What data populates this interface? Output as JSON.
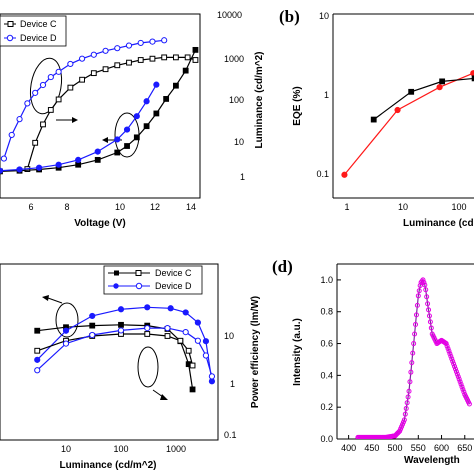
{
  "colors": {
    "black": "#000000",
    "blue": "#1a1aff",
    "red": "#ff1a1a",
    "magenta": "#e600e6",
    "purple": "#7a2a9c"
  },
  "chart_data": [
    {
      "id": "a",
      "type": "line",
      "xlabel": "Voltage (V)",
      "ylabel_right": "Luminance (cd/m^2)",
      "xlim": [
        4,
        15
      ],
      "xticks": [
        "6",
        "8",
        "10",
        "12",
        "14"
      ],
      "yticks_right": [
        "1",
        "10",
        "100",
        "1000",
        "10000"
      ],
      "legend": [
        "Device C",
        "Device D"
      ],
      "series": [
        {
          "name": "Device C",
          "axis": "left",
          "marker": "open-square",
          "x": [
            5.4,
            5.8,
            6.2,
            6.6,
            7.0,
            7.6,
            8.2,
            8.8,
            9.4,
            10.0,
            10.6,
            11.2,
            11.8,
            12.4,
            13.0,
            13.6,
            14.0
          ],
          "y": [
            2.2,
            4.2,
            5.6,
            6.7,
            7.5,
            8.4,
            9.0,
            9.5,
            9.8,
            10.1,
            10.3,
            10.5,
            10.6,
            10.7,
            10.7,
            10.7,
            10.5
          ]
        },
        {
          "name": "Device D",
          "axis": "left",
          "marker": "open-circle",
          "x": [
            4.2,
            4.6,
            5.0,
            5.4,
            5.8,
            6.2,
            6.6,
            7.0,
            7.6,
            8.2,
            8.8,
            9.4,
            10.0,
            10.6,
            11.2,
            11.8,
            12.4
          ],
          "y": [
            3.0,
            4.8,
            6.0,
            7.2,
            8.0,
            8.6,
            9.2,
            9.6,
            10.2,
            10.6,
            10.9,
            11.2,
            11.4,
            11.6,
            11.8,
            11.9,
            12.0
          ]
        },
        {
          "name": "Device C",
          "axis": "right",
          "marker": "filled-square",
          "x": [
            4.0,
            5.0,
            6.0,
            7.0,
            8.0,
            9.0,
            10.0,
            10.5,
            11.0,
            11.5,
            12.0,
            12.5,
            13.0,
            13.5,
            14.0
          ],
          "y": [
            1.3,
            1.35,
            1.45,
            1.6,
            1.9,
            2.5,
            3.8,
            5.5,
            9,
            17,
            35,
            80,
            170,
            400,
            1300
          ]
        },
        {
          "name": "Device D",
          "axis": "right",
          "marker": "filled-circle",
          "x": [
            4.0,
            5.0,
            6.0,
            7.0,
            8.0,
            9.0,
            10.0,
            10.5,
            11.0,
            11.5,
            12.0
          ],
          "y": [
            1.35,
            1.45,
            1.6,
            1.9,
            2.5,
            4,
            8,
            14,
            30,
            70,
            180
          ]
        }
      ]
    },
    {
      "id": "b",
      "type": "line",
      "xlabel": "Luminance (cd",
      "ylabel": "EQE (%)",
      "log_x": true,
      "log_y": true,
      "xticks": [
        "1",
        "10",
        "100"
      ],
      "yticks": [
        "0.1",
        "1",
        "10"
      ],
      "series": [
        {
          "color": "red",
          "marker": "filled-circle",
          "x": [
            0.9,
            8,
            45,
            180
          ],
          "y": [
            0.095,
            0.62,
            1.2,
            1.8
          ]
        },
        {
          "color": "black",
          "marker": "filled-square",
          "x": [
            3,
            14,
            50,
            190
          ],
          "y": [
            0.47,
            1.05,
            1.42,
            1.55
          ]
        }
      ]
    },
    {
      "id": "c",
      "type": "line",
      "xlabel": "Luminance (cd/m^2)",
      "ylabel_right": "Power efficiency (lm/W)",
      "log_x": true,
      "log_y": true,
      "xticks": [
        "10",
        "100",
        "1000"
      ],
      "yticks_right": [
        "0.1",
        "1",
        "10"
      ],
      "legend": [
        "Device C",
        "Device D"
      ],
      "series": [
        {
          "name": "Device C",
          "axis": "left",
          "marker": "filled-square",
          "x": [
            3,
            10,
            30,
            100,
            300,
            700,
            1200,
            1700,
            2000
          ],
          "y": [
            20,
            22,
            23,
            23.5,
            23,
            21,
            15,
            8,
            4
          ]
        },
        {
          "name": "Device D",
          "axis": "left",
          "marker": "filled-circle",
          "x": [
            3,
            10,
            30,
            100,
            300,
            800,
            1500,
            2500,
            3500,
            4500
          ],
          "y": [
            9,
            20,
            30,
            36,
            38,
            37,
            33,
            25,
            15,
            5
          ]
        },
        {
          "name": "Device C",
          "axis": "right",
          "marker": "open-square",
          "x": [
            3,
            10,
            30,
            100,
            300,
            700,
            1200,
            1700,
            2000
          ],
          "y": [
            5,
            8,
            10,
            11,
            11,
            10,
            8,
            5,
            2.5
          ]
        },
        {
          "name": "Device D",
          "axis": "right",
          "marker": "open-circle",
          "x": [
            3,
            10,
            30,
            100,
            300,
            700,
            1500,
            2500,
            3500,
            4500
          ],
          "y": [
            2,
            7,
            10.5,
            13,
            14.5,
            14.5,
            12,
            8,
            4,
            1.5
          ]
        }
      ]
    },
    {
      "id": "d",
      "type": "line",
      "xlabel": "Wavelength",
      "ylabel": "Intensity (a.u.)",
      "xlim": [
        375,
        700
      ],
      "ylim": [
        0,
        1.1
      ],
      "xticks": [
        "400",
        "450",
        "500",
        "550",
        "600",
        "650"
      ],
      "yticks": [
        "0.0",
        "0.2",
        "0.4",
        "0.6",
        "0.8",
        "1.0"
      ],
      "series": [
        {
          "color": "purple",
          "x": [
            420,
            440,
            460,
            480,
            500,
            510,
            520,
            530,
            540,
            550,
            555,
            560,
            565,
            570,
            580,
            590,
            600,
            610,
            620,
            630,
            640,
            650,
            660
          ],
          "y": [
            0.01,
            0.01,
            0.01,
            0.01,
            0.02,
            0.05,
            0.12,
            0.3,
            0.6,
            0.9,
            0.98,
            1.0,
            0.96,
            0.85,
            0.66,
            0.6,
            0.62,
            0.6,
            0.52,
            0.44,
            0.36,
            0.28,
            0.22
          ]
        }
      ]
    }
  ],
  "panel_labels": [
    "(b)",
    "(d)"
  ]
}
